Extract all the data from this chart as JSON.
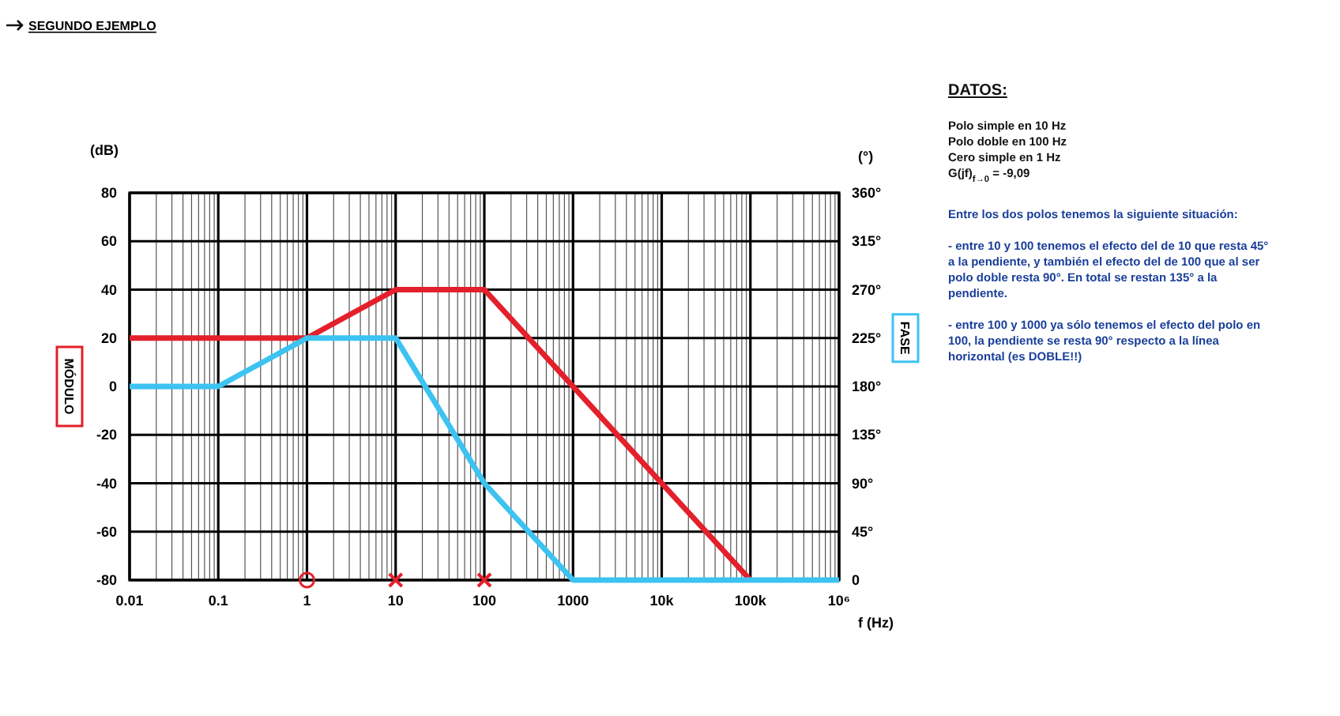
{
  "chart_data": {
    "type": "line",
    "title": "SEGUNDO EJEMPLO",
    "xlabel": "f (Hz)",
    "ylabel": "MÓDULO",
    "y2label": "FASE",
    "log": "x",
    "grid": true,
    "xlim": [
      0.01,
      1000000
    ],
    "xticks": [
      0.01,
      0.1,
      1,
      10,
      100,
      1000,
      {
        "value": 10000,
        "label": "10k"
      },
      {
        "value": 100000,
        "label": "100k"
      },
      {
        "value": 1000000,
        "label": "10⁶"
      }
    ],
    "ylim": [
      -80,
      80
    ],
    "yticks": [
      -80,
      -60,
      -40,
      -20,
      0,
      20,
      40,
      60,
      80
    ],
    "y2lim": [
      0,
      360
    ],
    "y2ticks": [
      {
        "value": 0,
        "label": "0"
      },
      {
        "value": 45,
        "label": "45°"
      },
      {
        "value": 90,
        "label": "90°"
      },
      {
        "value": 135,
        "label": "135°"
      },
      {
        "value": 180,
        "label": "180°"
      },
      {
        "value": 225,
        "label": "225°"
      },
      {
        "value": 270,
        "label": "270°"
      },
      {
        "value": 315,
        "label": "315°"
      },
      {
        "value": 360,
        "label": "360°"
      }
    ],
    "series": [
      {
        "color": "#e3202b",
        "x": [
          0.01,
          1,
          10,
          100,
          100000
        ],
        "values": [
          20,
          20,
          40,
          40,
          -80
        ]
      },
      {
        "color": "#3cc3f2",
        "axis": "y2",
        "x": [
          0.01,
          0.1,
          1,
          10,
          100,
          1000,
          1000000
        ],
        "values": [
          180,
          180,
          225,
          225,
          90,
          0,
          0
        ]
      },
      {
        "type": "scatter",
        "marker": "circle",
        "color": "#e3202b",
        "x": [
          1
        ],
        "values": [
          -80
        ]
      },
      {
        "type": "scatter",
        "marker": "cross",
        "color": "#e3202b",
        "x": [
          10,
          100
        ],
        "values": [
          -80,
          -80
        ]
      }
    ],
    "annotations": [
      "(dB)",
      "(°)",
      "DATOS:",
      "Polo simple en 10 Hz",
      "Polo doble en 100 Hz",
      "Cero simple en 1 Hz",
      "G(jf)$_{f→0}$ = -9,09",
      "Entre los dos polos tenemos la siguiente situación:",
      "- entre 10 y 100 tenemos el efecto del de 10 que resta 45° a la pendiente, y también el efecto del de 100 que al ser polo doble resta 90°. En total se restan 135° a la pendiente.",
      "- entre 100 y 1000 ya sólo tenemos el efecto del polo en 100, la pendiente se resta 90° respecto a la línea horizontal (es DOBLE!!)"
    ]
  }
}
